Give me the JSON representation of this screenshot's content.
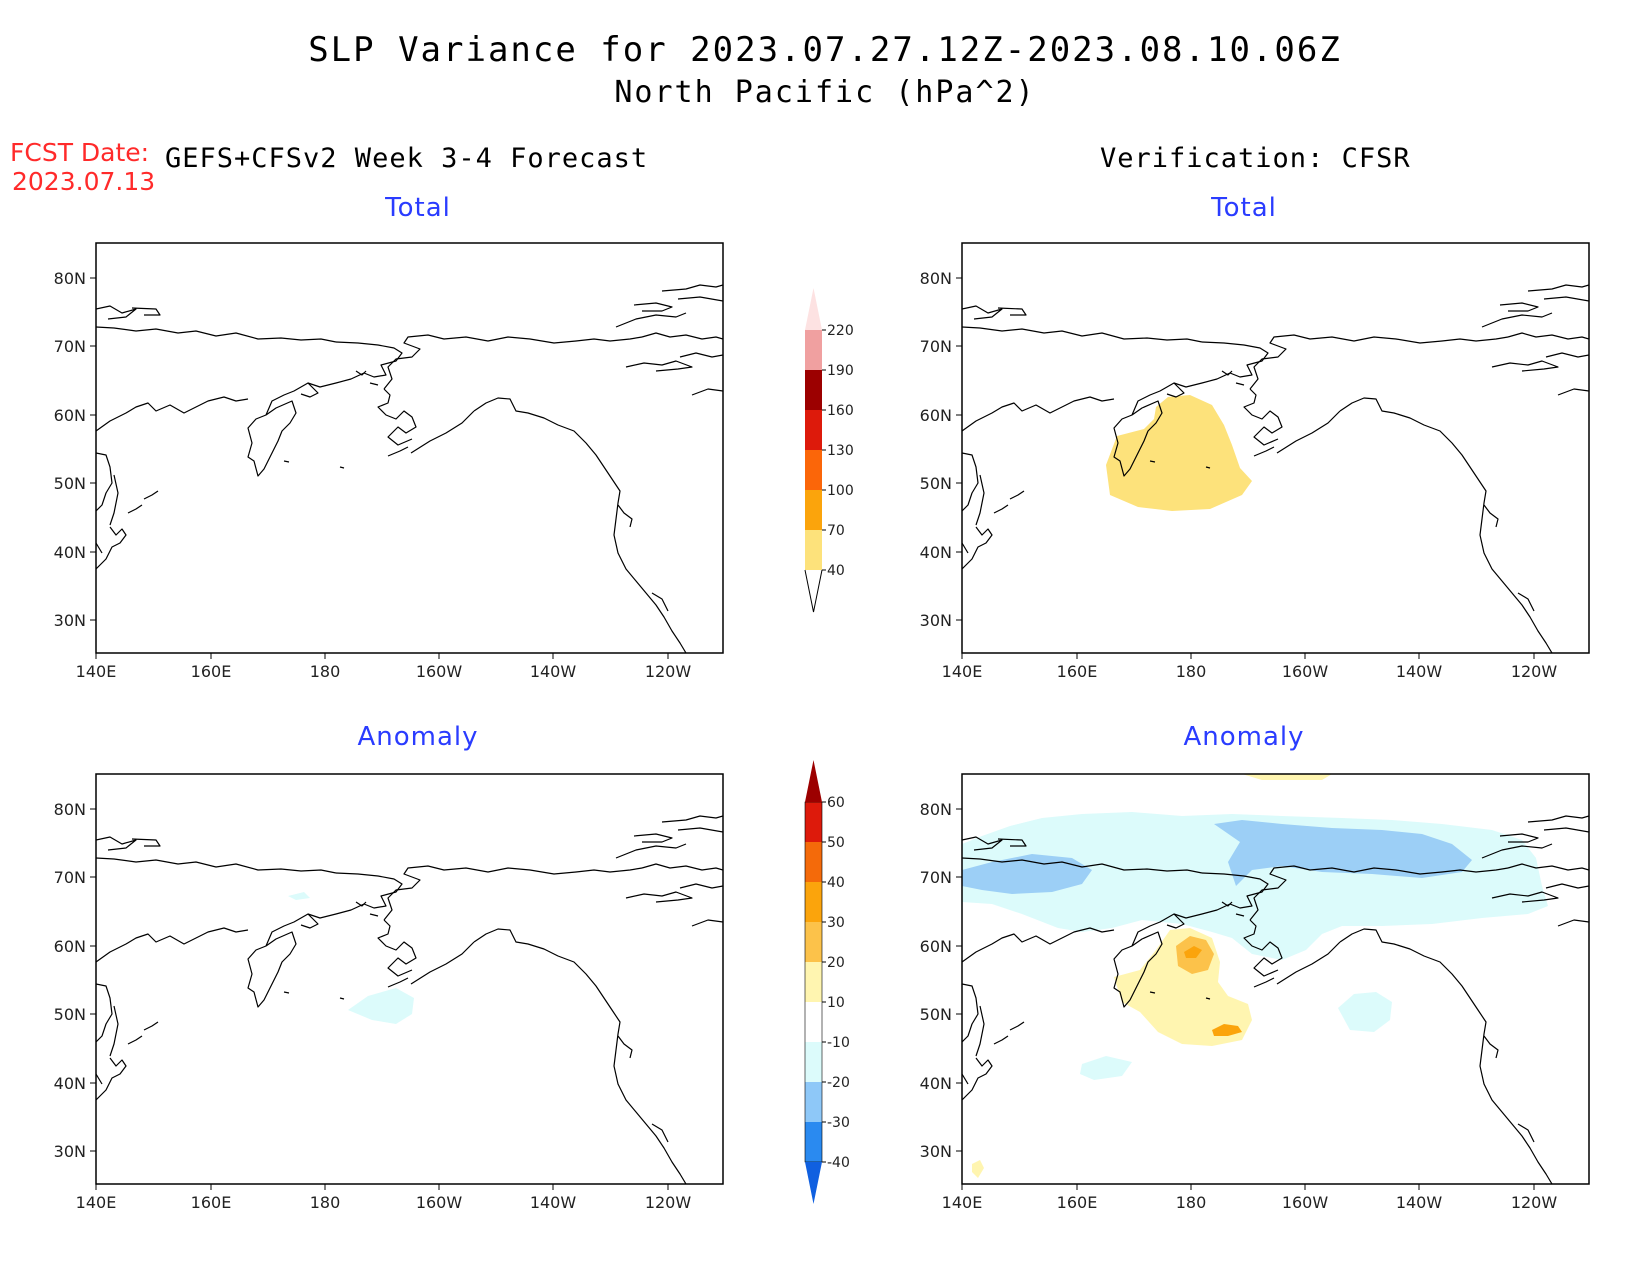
{
  "title": "SLP Variance for 2023.07.27.12Z-2023.08.10.06Z",
  "subtitle": "North Pacific (hPa^2)",
  "fcst_label": "FCST Date:",
  "fcst_date": "2023.07.13",
  "forecast_heading": "GEFS+CFSv2 Week 3-4 Forecast",
  "verification_heading": "Verification: CFSR",
  "panel_titles": {
    "fc_total": "Total",
    "ver_total": "Total",
    "fc_anomaly": "Anomaly",
    "ver_anomaly": "Anomaly"
  },
  "lat_ticks": [
    "80N",
    "70N",
    "60N",
    "50N",
    "40N",
    "30N"
  ],
  "lon_ticks": [
    "140E",
    "160E",
    "180",
    "160W",
    "140W",
    "120W"
  ],
  "total_colorbar": {
    "levels": [
      "40",
      "70",
      "100",
      "130",
      "160",
      "190",
      "220"
    ],
    "colors": [
      "#fde27b",
      "#fba40c",
      "#fb6609",
      "#dd1a0b",
      "#9c0000",
      "#f0a0a0",
      "#fde2e2"
    ]
  },
  "anomaly_colorbar": {
    "levels": [
      "-40",
      "-30",
      "-20",
      "-10",
      "10",
      "20",
      "30",
      "40",
      "50",
      "60"
    ],
    "colors": [
      "#1060e0",
      "#2a8af0",
      "#8ec8f8",
      "#dcfbfb",
      "#ffffff",
      "#fff5b0",
      "#fcc24a",
      "#fba40c",
      "#f46a0a",
      "#dd1a0b",
      "#9c0000"
    ]
  },
  "palette": {
    "light_yellow": "#fff5b0",
    "total_yellow": "#fde27b",
    "orange": "#fcc24a",
    "dark_orange": "#fba40c",
    "light_cyan": "#dcfbfb",
    "light_blue": "#9ccff6"
  }
}
